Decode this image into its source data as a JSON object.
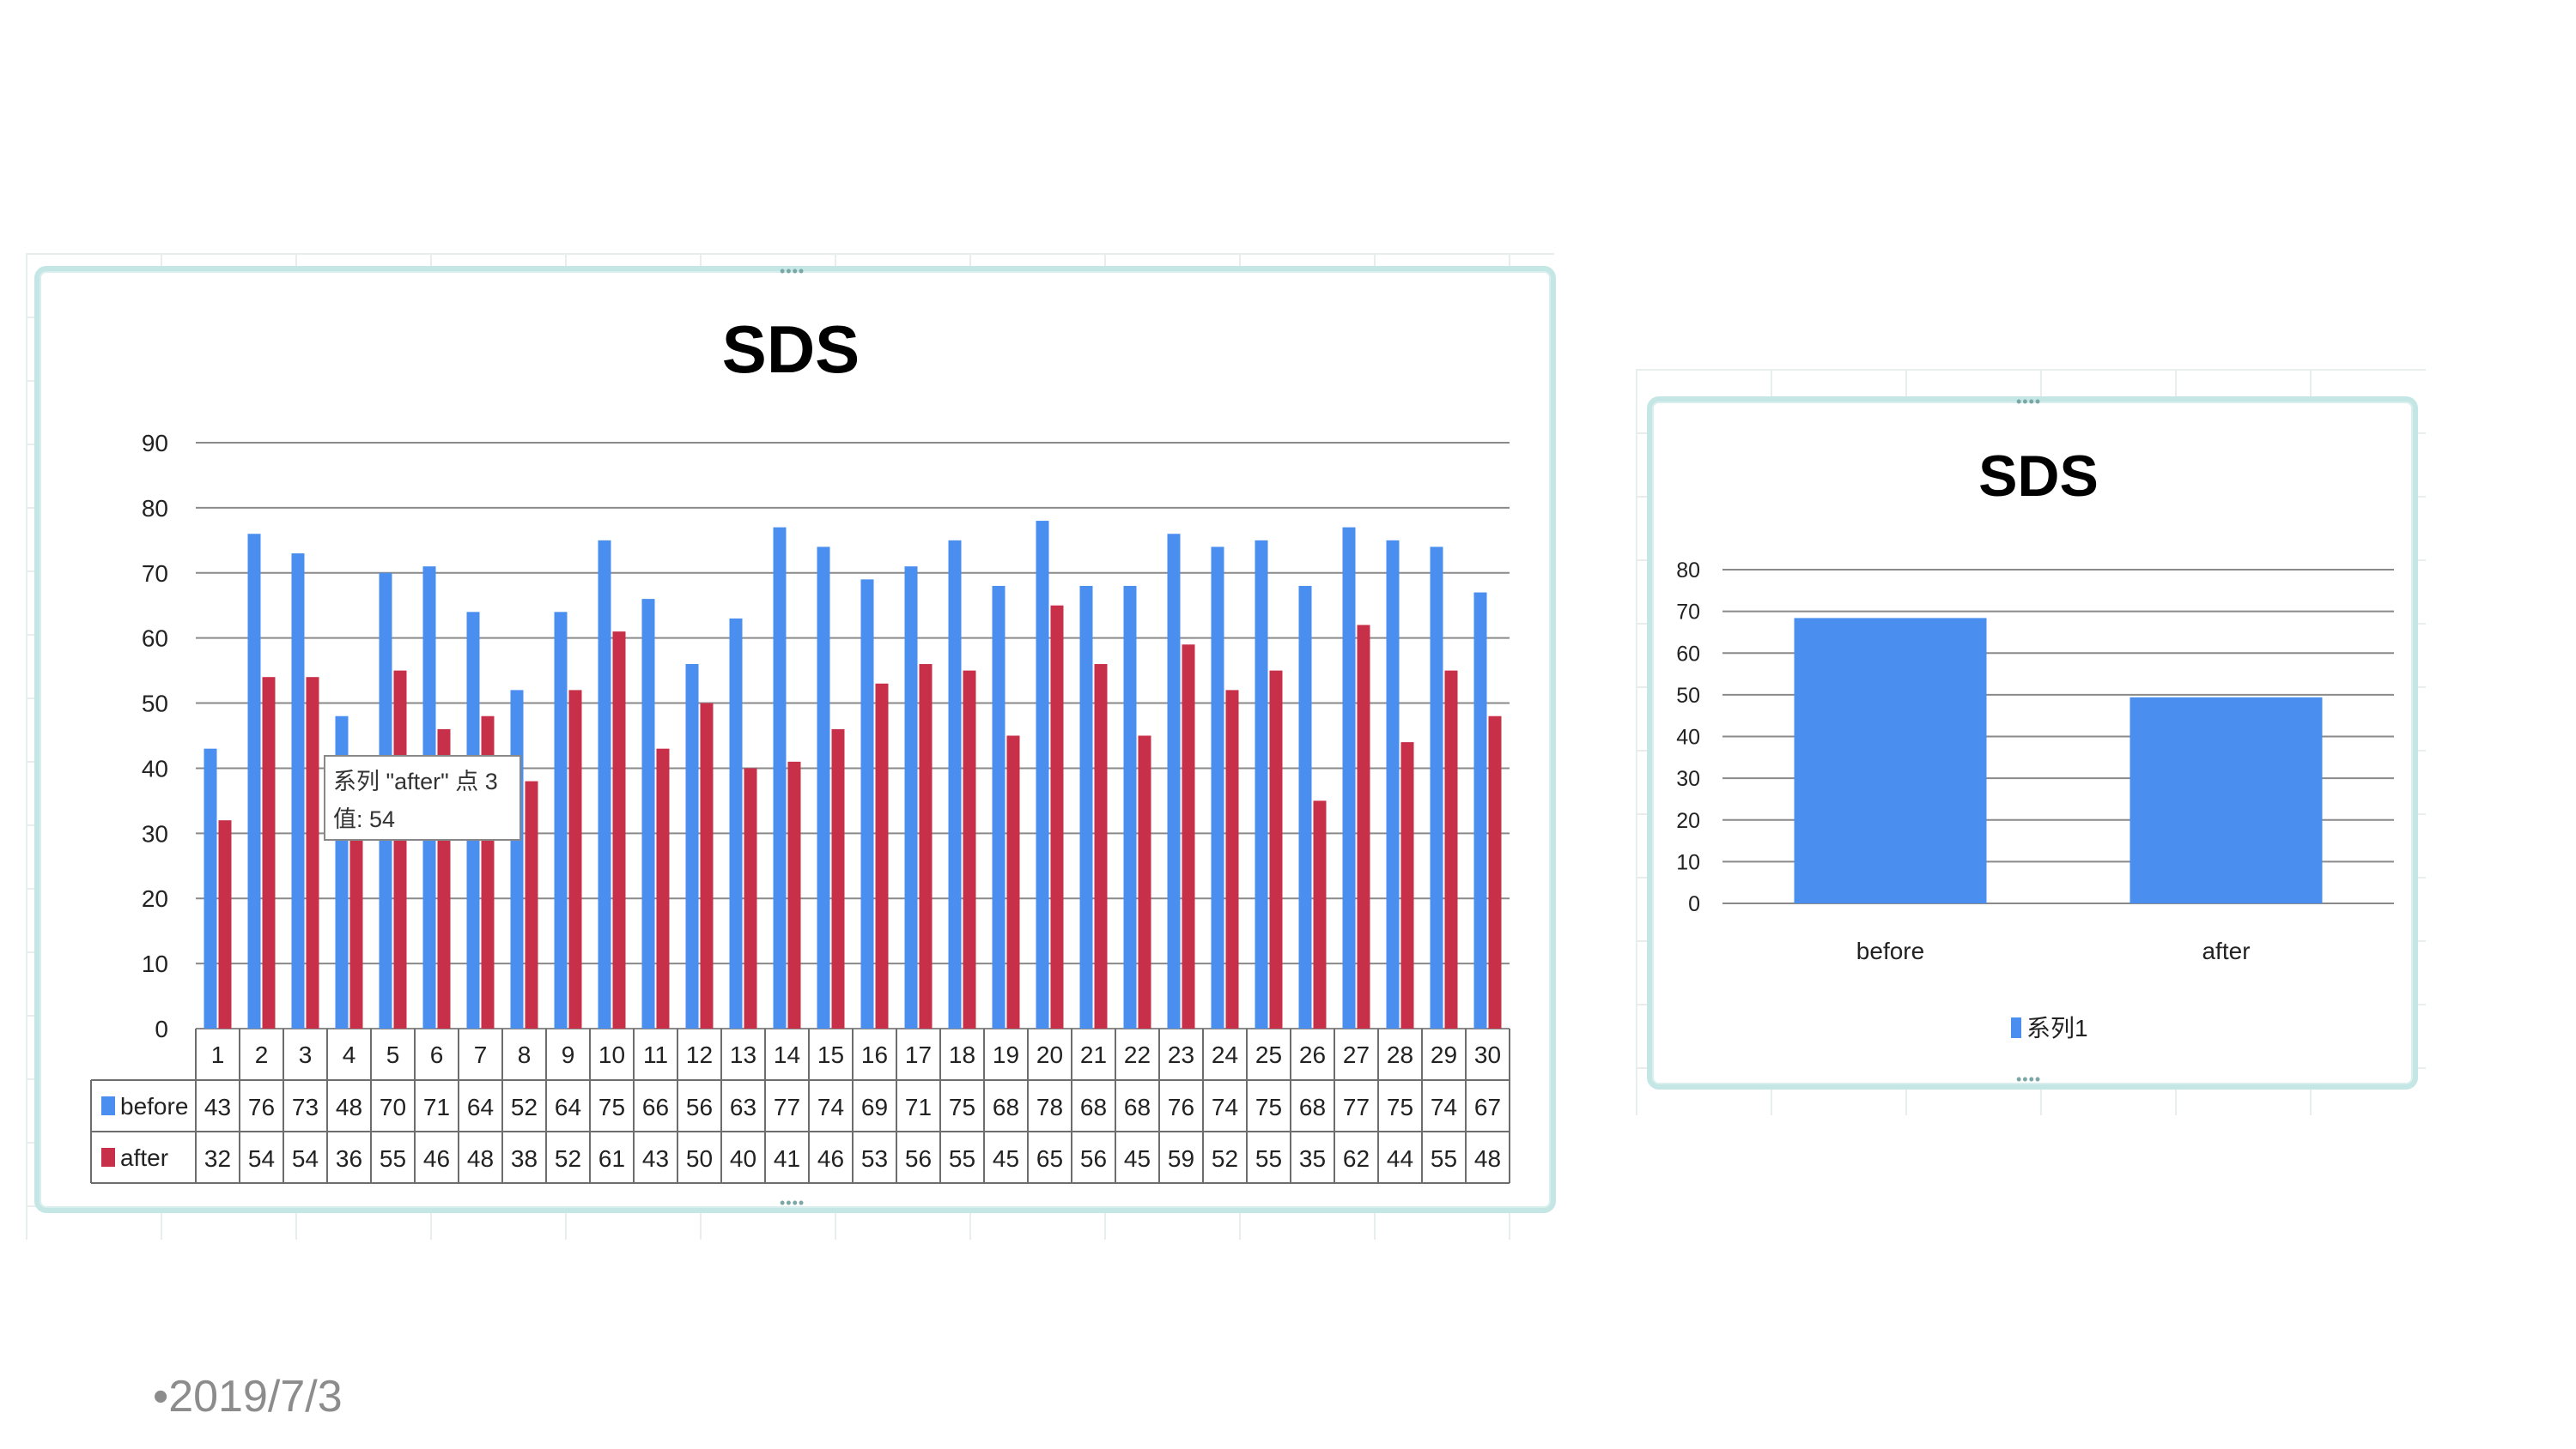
{
  "footer": {
    "date": "•2019/7/3"
  },
  "tooltip": {
    "line1": "系列 \"after\" 点 3",
    "line2": "值: 54"
  },
  "colors": {
    "before": "#4a8ef0",
    "after": "#c8304a",
    "frame": "#c4e6e4"
  },
  "chart_data": [
    {
      "type": "bar",
      "title": "SDS",
      "categories": [
        "1",
        "2",
        "3",
        "4",
        "5",
        "6",
        "7",
        "8",
        "9",
        "10",
        "11",
        "12",
        "13",
        "14",
        "15",
        "16",
        "17",
        "18",
        "19",
        "20",
        "21",
        "22",
        "23",
        "24",
        "25",
        "26",
        "27",
        "28",
        "29",
        "30"
      ],
      "series": [
        {
          "name": "before",
          "values": [
            43,
            76,
            73,
            48,
            70,
            71,
            64,
            52,
            64,
            75,
            66,
            56,
            63,
            77,
            74,
            69,
            71,
            75,
            68,
            78,
            68,
            68,
            76,
            74,
            75,
            68,
            77,
            75,
            74,
            67
          ]
        },
        {
          "name": "after",
          "values": [
            32,
            54,
            54,
            36,
            55,
            46,
            48,
            38,
            52,
            61,
            43,
            50,
            40,
            41,
            46,
            53,
            56,
            55,
            45,
            65,
            56,
            45,
            59,
            52,
            55,
            35,
            62,
            44,
            55,
            48
          ]
        }
      ],
      "ylim": [
        0,
        90
      ],
      "yticks": [
        0,
        10,
        20,
        30,
        40,
        50,
        60,
        70,
        80,
        90
      ],
      "grid": true,
      "legend": "data-table"
    },
    {
      "type": "bar",
      "title": "SDS",
      "categories": [
        "before",
        "after"
      ],
      "series": [
        {
          "name": "系列1",
          "values": [
            68.4,
            49.4
          ]
        }
      ],
      "ylim": [
        0,
        80
      ],
      "yticks": [
        0,
        10,
        20,
        30,
        40,
        50,
        60,
        70,
        80
      ],
      "grid": true,
      "legend": "bottom"
    }
  ]
}
